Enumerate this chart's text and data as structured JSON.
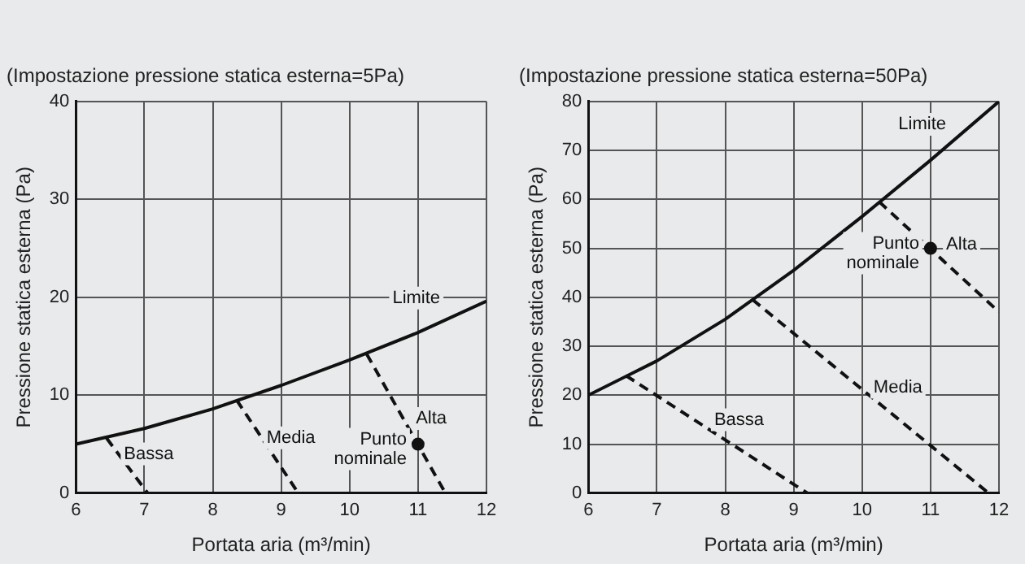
{
  "chart_data": [
    {
      "type": "line",
      "title": "(Impostazione pressione statica esterna=5Pa)",
      "xlabel": "Portata aria (m³/min)",
      "ylabel": "Pressione statica esterna (Pa)",
      "xlim": [
        6,
        12
      ],
      "xticks": [
        6,
        7,
        8,
        9,
        10,
        11,
        12
      ],
      "ylim": [
        0,
        40
      ],
      "yticks": [
        0,
        10,
        20,
        30,
        40
      ],
      "grid": true,
      "legend": false,
      "marker": "none",
      "series": [
        {
          "name": "Limite",
          "color": "#111111",
          "line_style": "solid",
          "x": [
            6,
            7,
            8,
            9,
            10,
            11,
            12
          ],
          "values": [
            5,
            6.6,
            8.6,
            11,
            13.6,
            16.4,
            19.6
          ]
        },
        {
          "name": "Bassa",
          "color": "#111111",
          "line_style": "dashed",
          "x": [
            6.45,
            7.05
          ],
          "values": [
            5.6,
            0
          ]
        },
        {
          "name": "Media",
          "color": "#111111",
          "line_style": "dashed",
          "x": [
            8.35,
            9.25
          ],
          "values": [
            9.5,
            0
          ]
        },
        {
          "name": "Alta",
          "color": "#111111",
          "line_style": "dashed",
          "x": [
            10.25,
            11.4
          ],
          "values": [
            14.2,
            0
          ]
        },
        {
          "name": "Punto nominale",
          "type": "scatter",
          "marker": "circle",
          "color": "#111111",
          "x": [
            11
          ],
          "values": [
            5
          ]
        }
      ]
    },
    {
      "type": "line",
      "title": "(Impostazione pressione statica esterna=50Pa)",
      "xlabel": "Portata aria (m³/min)",
      "ylabel": "Pressione statica esterna (Pa)",
      "xlim": [
        6,
        12
      ],
      "xticks": [
        6,
        7,
        8,
        9,
        10,
        11,
        12
      ],
      "ylim": [
        0,
        80
      ],
      "yticks": [
        0,
        10,
        20,
        30,
        40,
        50,
        60,
        70,
        80
      ],
      "grid": true,
      "legend": false,
      "marker": "none",
      "series": [
        {
          "name": "Limite",
          "color": "#111111",
          "line_style": "solid",
          "x": [
            6,
            7,
            8,
            9,
            10,
            11,
            12
          ],
          "values": [
            20,
            27,
            35.5,
            45.5,
            56.5,
            68,
            80
          ]
        },
        {
          "name": "Bassa",
          "color": "#111111",
          "line_style": "dashed",
          "x": [
            6.55,
            9.2
          ],
          "values": [
            24,
            0
          ]
        },
        {
          "name": "Media",
          "color": "#111111",
          "line_style": "dashed",
          "x": [
            8.4,
            11.85
          ],
          "values": [
            39.5,
            0
          ]
        },
        {
          "name": "Alta",
          "color": "#111111",
          "line_style": "dashed",
          "x": [
            10.25,
            12
          ],
          "values": [
            59.5,
            37
          ]
        },
        {
          "name": "Punto nominale",
          "type": "scatter",
          "marker": "circle",
          "color": "#111111",
          "x": [
            11
          ],
          "values": [
            50
          ]
        }
      ]
    }
  ]
}
